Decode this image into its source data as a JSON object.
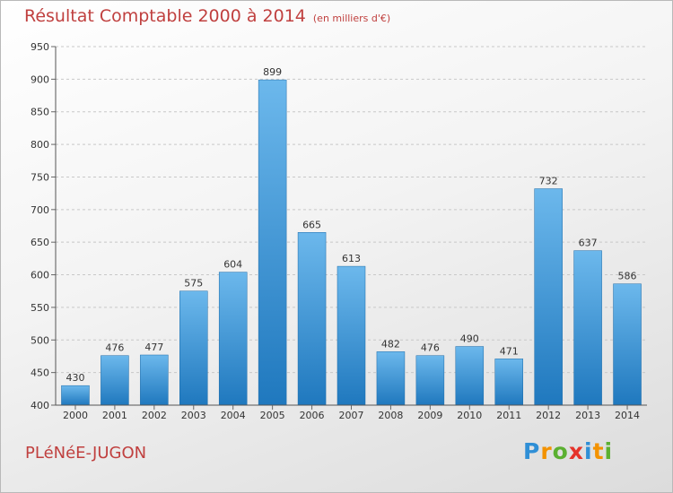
{
  "title": "Résultat Comptable 2000 à 2014",
  "subtitle": "(en milliers d'€)",
  "city": "PLéNéE-JUGON",
  "logo": {
    "letters": [
      "P",
      "r",
      "o",
      "x",
      "i",
      "t",
      "i"
    ],
    "colors": [
      "#2f8fd6",
      "#f39200",
      "#5bb031",
      "#e5332a",
      "#2f8fd6",
      "#f39200",
      "#5bb031"
    ]
  },
  "colors": {
    "bar_light": "#6cb8ec",
    "bar_dark": "#1f78be",
    "grid": "#c8c8c8",
    "text": "#333333",
    "accent": "#c0403f"
  },
  "chart_data": {
    "type": "bar",
    "categories": [
      "2000",
      "2001",
      "2002",
      "2003",
      "2004",
      "2005",
      "2006",
      "2007",
      "2008",
      "2009",
      "2010",
      "2011",
      "2012",
      "2013",
      "2014"
    ],
    "values": [
      430,
      476,
      477,
      575,
      604,
      899,
      665,
      613,
      482,
      476,
      490,
      471,
      732,
      637,
      586
    ],
    "ylim": [
      400,
      950
    ],
    "yticks": [
      400,
      450,
      500,
      550,
      600,
      650,
      700,
      750,
      800,
      850,
      900,
      950
    ],
    "grid": true,
    "data_labels": true
  }
}
